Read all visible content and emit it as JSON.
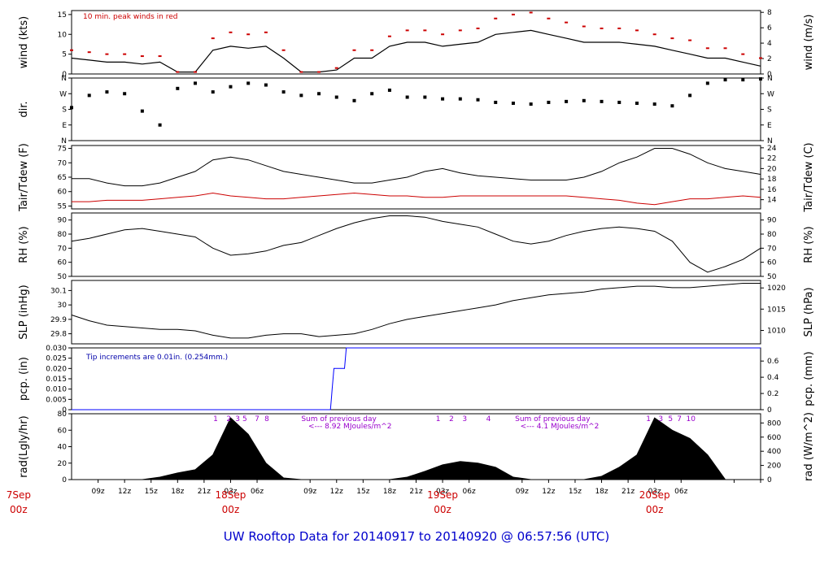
{
  "title": "UW Rooftop Data for 20140917  to  20140920 @ 06:57:56  (UTC)",
  "colors": {
    "frame": "#000000",
    "red": "#cc0000",
    "blue": "#0000ff",
    "purple": "#9900cc",
    "title": "#0000cc"
  },
  "time_axis": {
    "hours_span": 78,
    "hour_labels": [
      "09z",
      "12z",
      "15z",
      "18z",
      "21z",
      "03z",
      "06z",
      "09z",
      "12z",
      "15z",
      "18z",
      "21z",
      "03z",
      "06z",
      "09z",
      "12z",
      "15z",
      "18z",
      "21z",
      "03z",
      "06z"
    ],
    "day_labels": [
      {
        "name": "7Sep",
        "sub": "00z",
        "hour": -6
      },
      {
        "name": "18Sep",
        "sub": "00z",
        "hour": 18
      },
      {
        "name": "19Sep",
        "sub": "00z",
        "hour": 42
      },
      {
        "name": "20Sep",
        "sub": "00z",
        "hour": 66
      }
    ]
  },
  "chart_data": [
    {
      "id": "wind",
      "type": "line",
      "ylabel": "wind (kts)",
      "ylabel_right": "wind (m/s)",
      "ylim": [
        0,
        16
      ],
      "yticks": [
        0,
        5,
        10,
        15
      ],
      "yticks_right": {
        "labels": [
          "0",
          "2",
          "4",
          "6",
          "8"
        ],
        "values": [
          0,
          3.89,
          7.78,
          11.66,
          15.55
        ]
      },
      "annotation": "10 min. peak winds in red",
      "x_hours": [
        0,
        2,
        4,
        6,
        8,
        10,
        12,
        14,
        16,
        18,
        20,
        22,
        24,
        26,
        28,
        30,
        32,
        34,
        36,
        38,
        40,
        42,
        44,
        46,
        48,
        50,
        52,
        54,
        56,
        58,
        60,
        62,
        64,
        66,
        68,
        70,
        72,
        74,
        76,
        78
      ],
      "values": [
        4,
        3.5,
        3,
        3,
        2.5,
        3,
        0.5,
        0.5,
        6,
        7,
        6.5,
        7,
        4,
        0.5,
        0.5,
        1,
        4,
        4,
        7,
        8,
        8,
        7,
        7.5,
        8,
        10,
        10.5,
        11,
        10,
        9,
        8,
        8,
        8,
        7.5,
        7,
        6,
        5,
        4,
        4,
        3,
        2
      ],
      "gusts": [
        6,
        5.5,
        5,
        5,
        4.5,
        4.5,
        0.5,
        0.5,
        9,
        10.5,
        10,
        10.5,
        6,
        0.5,
        0.5,
        1.5,
        6,
        6,
        9.5,
        11,
        11,
        10,
        11,
        11.5,
        14,
        15,
        15.5,
        14,
        13,
        12,
        11.5,
        11.5,
        11,
        10,
        9,
        8.5,
        6.5,
        6.5,
        5,
        4
      ]
    },
    {
      "id": "dir",
      "type": "scatter",
      "ylabel": "dir.",
      "ylim": [
        0,
        360
      ],
      "ytick_labels": [
        "N",
        "E",
        "S",
        "W",
        "N"
      ],
      "ytick_values": [
        0,
        90,
        180,
        270,
        360
      ],
      "x_hours": [
        0,
        2,
        4,
        6,
        8,
        10,
        12,
        14,
        16,
        18,
        20,
        22,
        24,
        26,
        28,
        30,
        32,
        34,
        36,
        38,
        40,
        42,
        44,
        46,
        48,
        50,
        52,
        54,
        56,
        58,
        60,
        62,
        64,
        66,
        68,
        70,
        72,
        74,
        76,
        78
      ],
      "values": [
        190,
        260,
        280,
        270,
        170,
        90,
        300,
        330,
        280,
        310,
        330,
        320,
        280,
        260,
        270,
        250,
        230,
        270,
        290,
        250,
        250,
        240,
        240,
        235,
        220,
        215,
        210,
        220,
        225,
        230,
        225,
        220,
        215,
        210,
        200,
        260,
        330,
        350,
        350,
        355
      ]
    },
    {
      "id": "temp",
      "type": "line",
      "ylabel": "Tair/Tdew (F)",
      "ylabel_right": "Tair/Tdew (C)",
      "ylim": [
        54,
        76
      ],
      "yticks": [
        55,
        60,
        65,
        70,
        75
      ],
      "yticks_right": {
        "labels": [
          "14",
          "16",
          "18",
          "20",
          "22",
          "24"
        ],
        "values": [
          57.2,
          60.8,
          64.4,
          68,
          71.6,
          75.2
        ]
      },
      "x_hours": [
        0,
        2,
        4,
        6,
        8,
        10,
        12,
        14,
        16,
        18,
        20,
        22,
        24,
        26,
        28,
        30,
        32,
        34,
        36,
        38,
        40,
        42,
        44,
        46,
        48,
        50,
        52,
        54,
        56,
        58,
        60,
        62,
        64,
        66,
        68,
        70,
        72,
        74,
        76,
        78
      ],
      "series": [
        {
          "values": [
            64.5,
            64.5,
            63,
            62,
            62,
            63,
            65,
            67,
            71,
            72,
            71,
            69,
            67,
            66,
            65,
            64,
            63,
            63,
            64,
            65,
            67,
            68,
            66.5,
            65.5,
            65,
            64.5,
            64,
            64,
            64,
            65,
            67,
            70,
            72,
            75,
            75,
            73,
            70,
            68,
            67,
            66
          ]
        },
        {
          "values": [
            56.5,
            56.5,
            57,
            57,
            57,
            57.5,
            58,
            58.5,
            59.5,
            58.5,
            58,
            57.5,
            57.5,
            58,
            58.5,
            59,
            59.5,
            59,
            58.5,
            58.5,
            58,
            58,
            58.5,
            58.5,
            58.5,
            58.5,
            58.5,
            58.5,
            58.5,
            58,
            57.5,
            57,
            56,
            55.5,
            56.5,
            57.5,
            57.5,
            58,
            58.5,
            58
          ]
        }
      ]
    },
    {
      "id": "rh",
      "type": "line",
      "ylabel": "RH (%)",
      "ylabel_right": "RH (%)",
      "ylim": [
        50,
        95
      ],
      "yticks": [
        50,
        60,
        70,
        80,
        90
      ],
      "x_hours": [
        0,
        2,
        4,
        6,
        8,
        10,
        12,
        14,
        16,
        18,
        20,
        22,
        24,
        26,
        28,
        30,
        32,
        34,
        36,
        38,
        40,
        42,
        44,
        46,
        48,
        50,
        52,
        54,
        56,
        58,
        60,
        62,
        64,
        66,
        68,
        70,
        72,
        74,
        76,
        78
      ],
      "values": [
        75,
        77,
        80,
        83,
        84,
        82,
        80,
        78,
        70,
        65,
        66,
        68,
        72,
        74,
        79,
        84,
        88,
        91,
        93,
        93,
        92,
        89,
        87,
        85,
        80,
        75,
        73,
        75,
        79,
        82,
        84,
        85,
        84,
        82,
        75,
        60,
        53,
        57,
        62,
        70
      ]
    },
    {
      "id": "slp",
      "type": "line",
      "ylabel": "SLP (inHg)",
      "ylabel_right": "SLP (hPa)",
      "ylim": [
        29.73,
        30.17
      ],
      "yticks": [
        29.8,
        29.9,
        30.0,
        30.1
      ],
      "yticks_right": {
        "labels": [
          "1010",
          "1015",
          "1020"
        ],
        "values": [
          29.823,
          29.971,
          30.118
        ]
      },
      "x_hours": [
        0,
        2,
        4,
        6,
        8,
        10,
        12,
        14,
        16,
        18,
        20,
        22,
        24,
        26,
        28,
        30,
        32,
        34,
        36,
        38,
        40,
        42,
        44,
        46,
        48,
        50,
        52,
        54,
        56,
        58,
        60,
        62,
        64,
        66,
        68,
        70,
        72,
        74,
        76,
        78
      ],
      "values": [
        29.93,
        29.89,
        29.86,
        29.85,
        29.84,
        29.83,
        29.83,
        29.82,
        29.79,
        29.77,
        29.77,
        29.79,
        29.8,
        29.8,
        29.78,
        29.79,
        29.8,
        29.83,
        29.87,
        29.9,
        29.92,
        29.94,
        29.96,
        29.98,
        30.0,
        30.03,
        30.05,
        30.07,
        30.08,
        30.09,
        30.11,
        30.12,
        30.13,
        30.13,
        30.12,
        30.12,
        30.13,
        30.14,
        30.15,
        30.15
      ]
    },
    {
      "id": "pcp",
      "type": "line",
      "ylabel": "pcp. (in)",
      "ylabel_right": "pcp. (mm)",
      "ylim": [
        0,
        0.03
      ],
      "yticks": [
        0,
        0.005,
        0.01,
        0.015,
        0.02,
        0.025,
        0.03
      ],
      "ytick_labels": [
        "0",
        "0.005",
        "0.010",
        "0.015",
        "0.020",
        "0.025",
        "0.030"
      ],
      "yticks_right": {
        "labels": [
          "0",
          "0.2",
          "0.4",
          "0.6"
        ],
        "values": [
          0,
          0.00787,
          0.01575,
          0.02362
        ]
      },
      "annotation": "Tip increments are 0.01in. (0.254mm.)",
      "x_hours": [
        0,
        29.3,
        29.4,
        29.5,
        29.6,
        29.7,
        30.9,
        31.0,
        31.1,
        78
      ],
      "values": [
        0,
        0,
        0.005,
        0.01,
        0.015,
        0.02,
        0.02,
        0.025,
        0.03,
        0.03
      ]
    },
    {
      "id": "rad",
      "type": "area",
      "ylabel": "rad(Lgly/hr)",
      "ylabel_right": "rad (W/m^2)",
      "ylim": [
        0,
        80
      ],
      "yticks": [
        0,
        20,
        40,
        60,
        80
      ],
      "yticks_right": {
        "labels": [
          "0",
          "200",
          "400",
          "600",
          "800"
        ],
        "values": [
          0,
          17.2,
          34.4,
          51.6,
          68.8
        ]
      },
      "x_hours": [
        6,
        8,
        10,
        12,
        14,
        16,
        18,
        20,
        22,
        24,
        26,
        28,
        30,
        32,
        34,
        36,
        38,
        40,
        42,
        44,
        46,
        48,
        50,
        52,
        54,
        56,
        58,
        60,
        62,
        64,
        66,
        68,
        70,
        72,
        74
      ],
      "values": [
        0,
        0,
        3,
        8,
        12,
        30,
        75,
        55,
        20,
        2,
        0,
        0,
        0,
        0,
        0,
        0,
        3,
        10,
        18,
        22,
        20,
        15,
        3,
        0,
        0,
        0,
        0,
        4,
        15,
        30,
        75,
        60,
        50,
        30,
        0
      ],
      "annotations": [
        {
          "text": "1",
          "hour": 16.3
        },
        {
          "text": "2",
          "hour": 17.8
        },
        {
          "text": "3",
          "hour": 18.8
        },
        {
          "text": "5",
          "hour": 19.6
        },
        {
          "text": "7",
          "hour": 21.0
        },
        {
          "text": "8",
          "hour": 22.1
        },
        {
          "text": "Sum of previous day",
          "hour": 26.0
        },
        {
          "text": "<--- 8.92 MJoules/m^2",
          "hour": 26.8
        },
        {
          "text": "1",
          "hour": 41.5
        },
        {
          "text": "2",
          "hour": 43.0
        },
        {
          "text": "3",
          "hour": 44.5
        },
        {
          "text": "4",
          "hour": 47.2
        },
        {
          "text": "Sum of previous day",
          "hour": 50.2
        },
        {
          "text": "<--- 4.1 MJoules/m^2",
          "hour": 50.8
        },
        {
          "text": "1",
          "hour": 65.3
        },
        {
          "text": "3",
          "hour": 66.7
        },
        {
          "text": "5",
          "hour": 67.8
        },
        {
          "text": "7",
          "hour": 68.8
        },
        {
          "text": "10",
          "hour": 70.1
        }
      ]
    }
  ]
}
